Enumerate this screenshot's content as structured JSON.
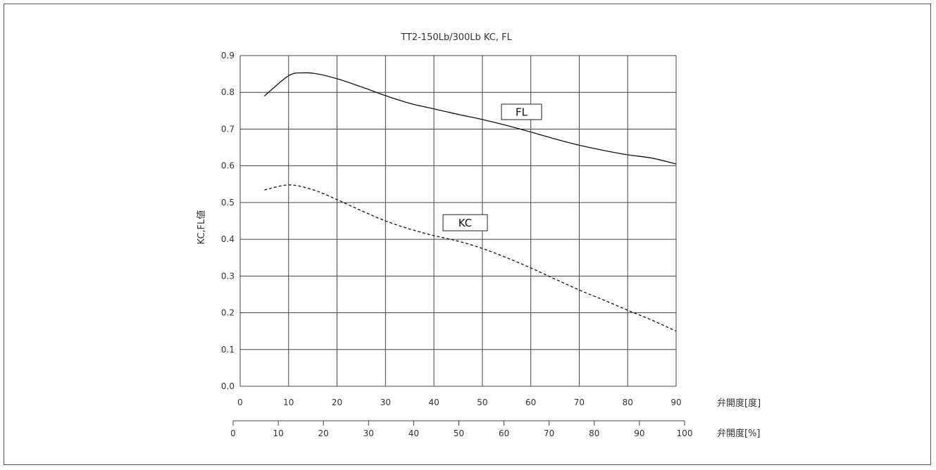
{
  "chart_data": {
    "type": "line",
    "title": "TT2-150Lb/300Lb KC, FL",
    "ylabel": "KC,FL値",
    "xlabel": "弁開度[度]",
    "x2label": "弁開度[%]",
    "xlim": [
      0,
      90
    ],
    "ylim": [
      0.0,
      0.9
    ],
    "grid": true,
    "x_ticks": [
      "0",
      "10",
      "20",
      "30",
      "40",
      "50",
      "60",
      "70",
      "80",
      "90"
    ],
    "x2_ticks": [
      "0",
      "10",
      "20",
      "30",
      "40",
      "50",
      "60",
      "70",
      "80",
      "90",
      "100"
    ],
    "y_ticks": [
      "0.0",
      "0.1",
      "0.2",
      "0.3",
      "0.4",
      "0.5",
      "0.6",
      "0.7",
      "0.8",
      "0.9"
    ],
    "series": [
      {
        "name": "FL",
        "style": "solid",
        "color": "#111111",
        "points": [
          [
            5,
            0.79
          ],
          [
            10,
            0.845
          ],
          [
            13,
            0.853
          ],
          [
            16,
            0.85
          ],
          [
            20,
            0.837
          ],
          [
            25,
            0.815
          ],
          [
            30,
            0.791
          ],
          [
            35,
            0.77
          ],
          [
            40,
            0.755
          ],
          [
            45,
            0.74
          ],
          [
            50,
            0.726
          ],
          [
            55,
            0.71
          ],
          [
            60,
            0.692
          ],
          [
            65,
            0.673
          ],
          [
            70,
            0.656
          ],
          [
            75,
            0.642
          ],
          [
            80,
            0.63
          ],
          [
            85,
            0.621
          ],
          [
            90,
            0.605
          ]
        ]
      },
      {
        "name": "KC",
        "style": "dashed",
        "color": "#111111",
        "points": [
          [
            5,
            0.534
          ],
          [
            10,
            0.548
          ],
          [
            15,
            0.535
          ],
          [
            20,
            0.508
          ],
          [
            25,
            0.478
          ],
          [
            30,
            0.45
          ],
          [
            35,
            0.428
          ],
          [
            40,
            0.41
          ],
          [
            45,
            0.395
          ],
          [
            50,
            0.375
          ],
          [
            55,
            0.35
          ],
          [
            60,
            0.322
          ],
          [
            65,
            0.292
          ],
          [
            70,
            0.262
          ],
          [
            75,
            0.235
          ],
          [
            80,
            0.207
          ],
          [
            85,
            0.18
          ],
          [
            90,
            0.15
          ]
        ]
      }
    ]
  }
}
